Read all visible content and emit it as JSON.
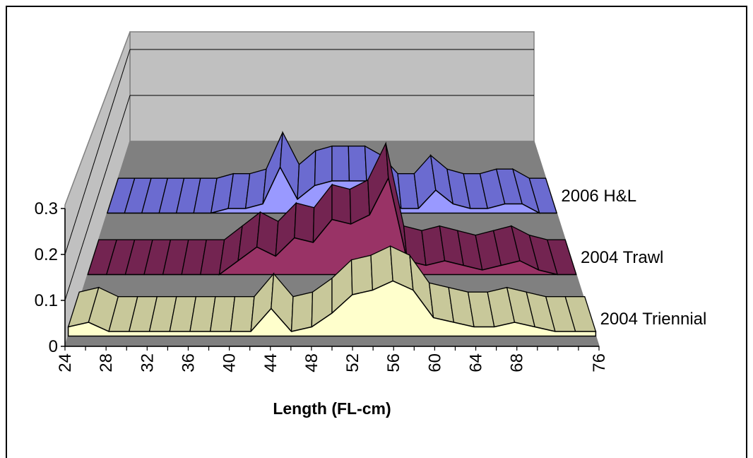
{
  "chart_data": {
    "type": "area",
    "style": "3d-ribbon",
    "title": "",
    "xlabel": "Length (FL-cm)",
    "ylabel": "",
    "x_tick_labels": [
      "24",
      "28",
      "32",
      "36",
      "40",
      "44",
      "48",
      "52",
      "56",
      "60",
      "64",
      "68",
      "76"
    ],
    "y_tick_labels": [
      "0",
      "0.1",
      "0.2",
      "0.3"
    ],
    "ylim": [
      0,
      0.3
    ],
    "x": [
      24,
      26,
      28,
      30,
      32,
      34,
      36,
      38,
      40,
      42,
      44,
      46,
      48,
      50,
      52,
      54,
      56,
      58,
      60,
      62,
      64,
      66,
      68,
      70,
      72,
      74,
      76
    ],
    "series": [
      {
        "name": "2006 H&L",
        "fill_color": "#9999ff",
        "side_color": "#6b6bd0",
        "values": [
          0,
          0,
          0,
          0,
          0,
          0,
          0,
          0.01,
          0.01,
          0.02,
          0.1,
          0.03,
          0.06,
          0.07,
          0.07,
          0.07,
          0.05,
          0.01,
          0.01,
          0.05,
          0.02,
          0.01,
          0.01,
          0.02,
          0.02,
          0,
          0
        ]
      },
      {
        "name": "2004 Trawl",
        "fill_color": "#993366",
        "side_color": "#732451",
        "values": [
          0,
          0,
          0,
          0,
          0,
          0,
          0,
          0,
          0.03,
          0.06,
          0.04,
          0.08,
          0.07,
          0.12,
          0.11,
          0.13,
          0.21,
          0.03,
          0.02,
          0.03,
          0.02,
          0.01,
          0.02,
          0.03,
          0.01,
          0,
          0
        ]
      },
      {
        "name": "2004 Triennial",
        "fill_color": "#ffffcc",
        "side_color": "#c8c89a",
        "values": [
          0.02,
          0.03,
          0.01,
          0.01,
          0.01,
          0.01,
          0.01,
          0.01,
          0.01,
          0.01,
          0.06,
          0.01,
          0.02,
          0.05,
          0.09,
          0.1,
          0.12,
          0.1,
          0.04,
          0.03,
          0.02,
          0.02,
          0.03,
          0.02,
          0.01,
          0.01,
          0.01
        ]
      }
    ]
  }
}
